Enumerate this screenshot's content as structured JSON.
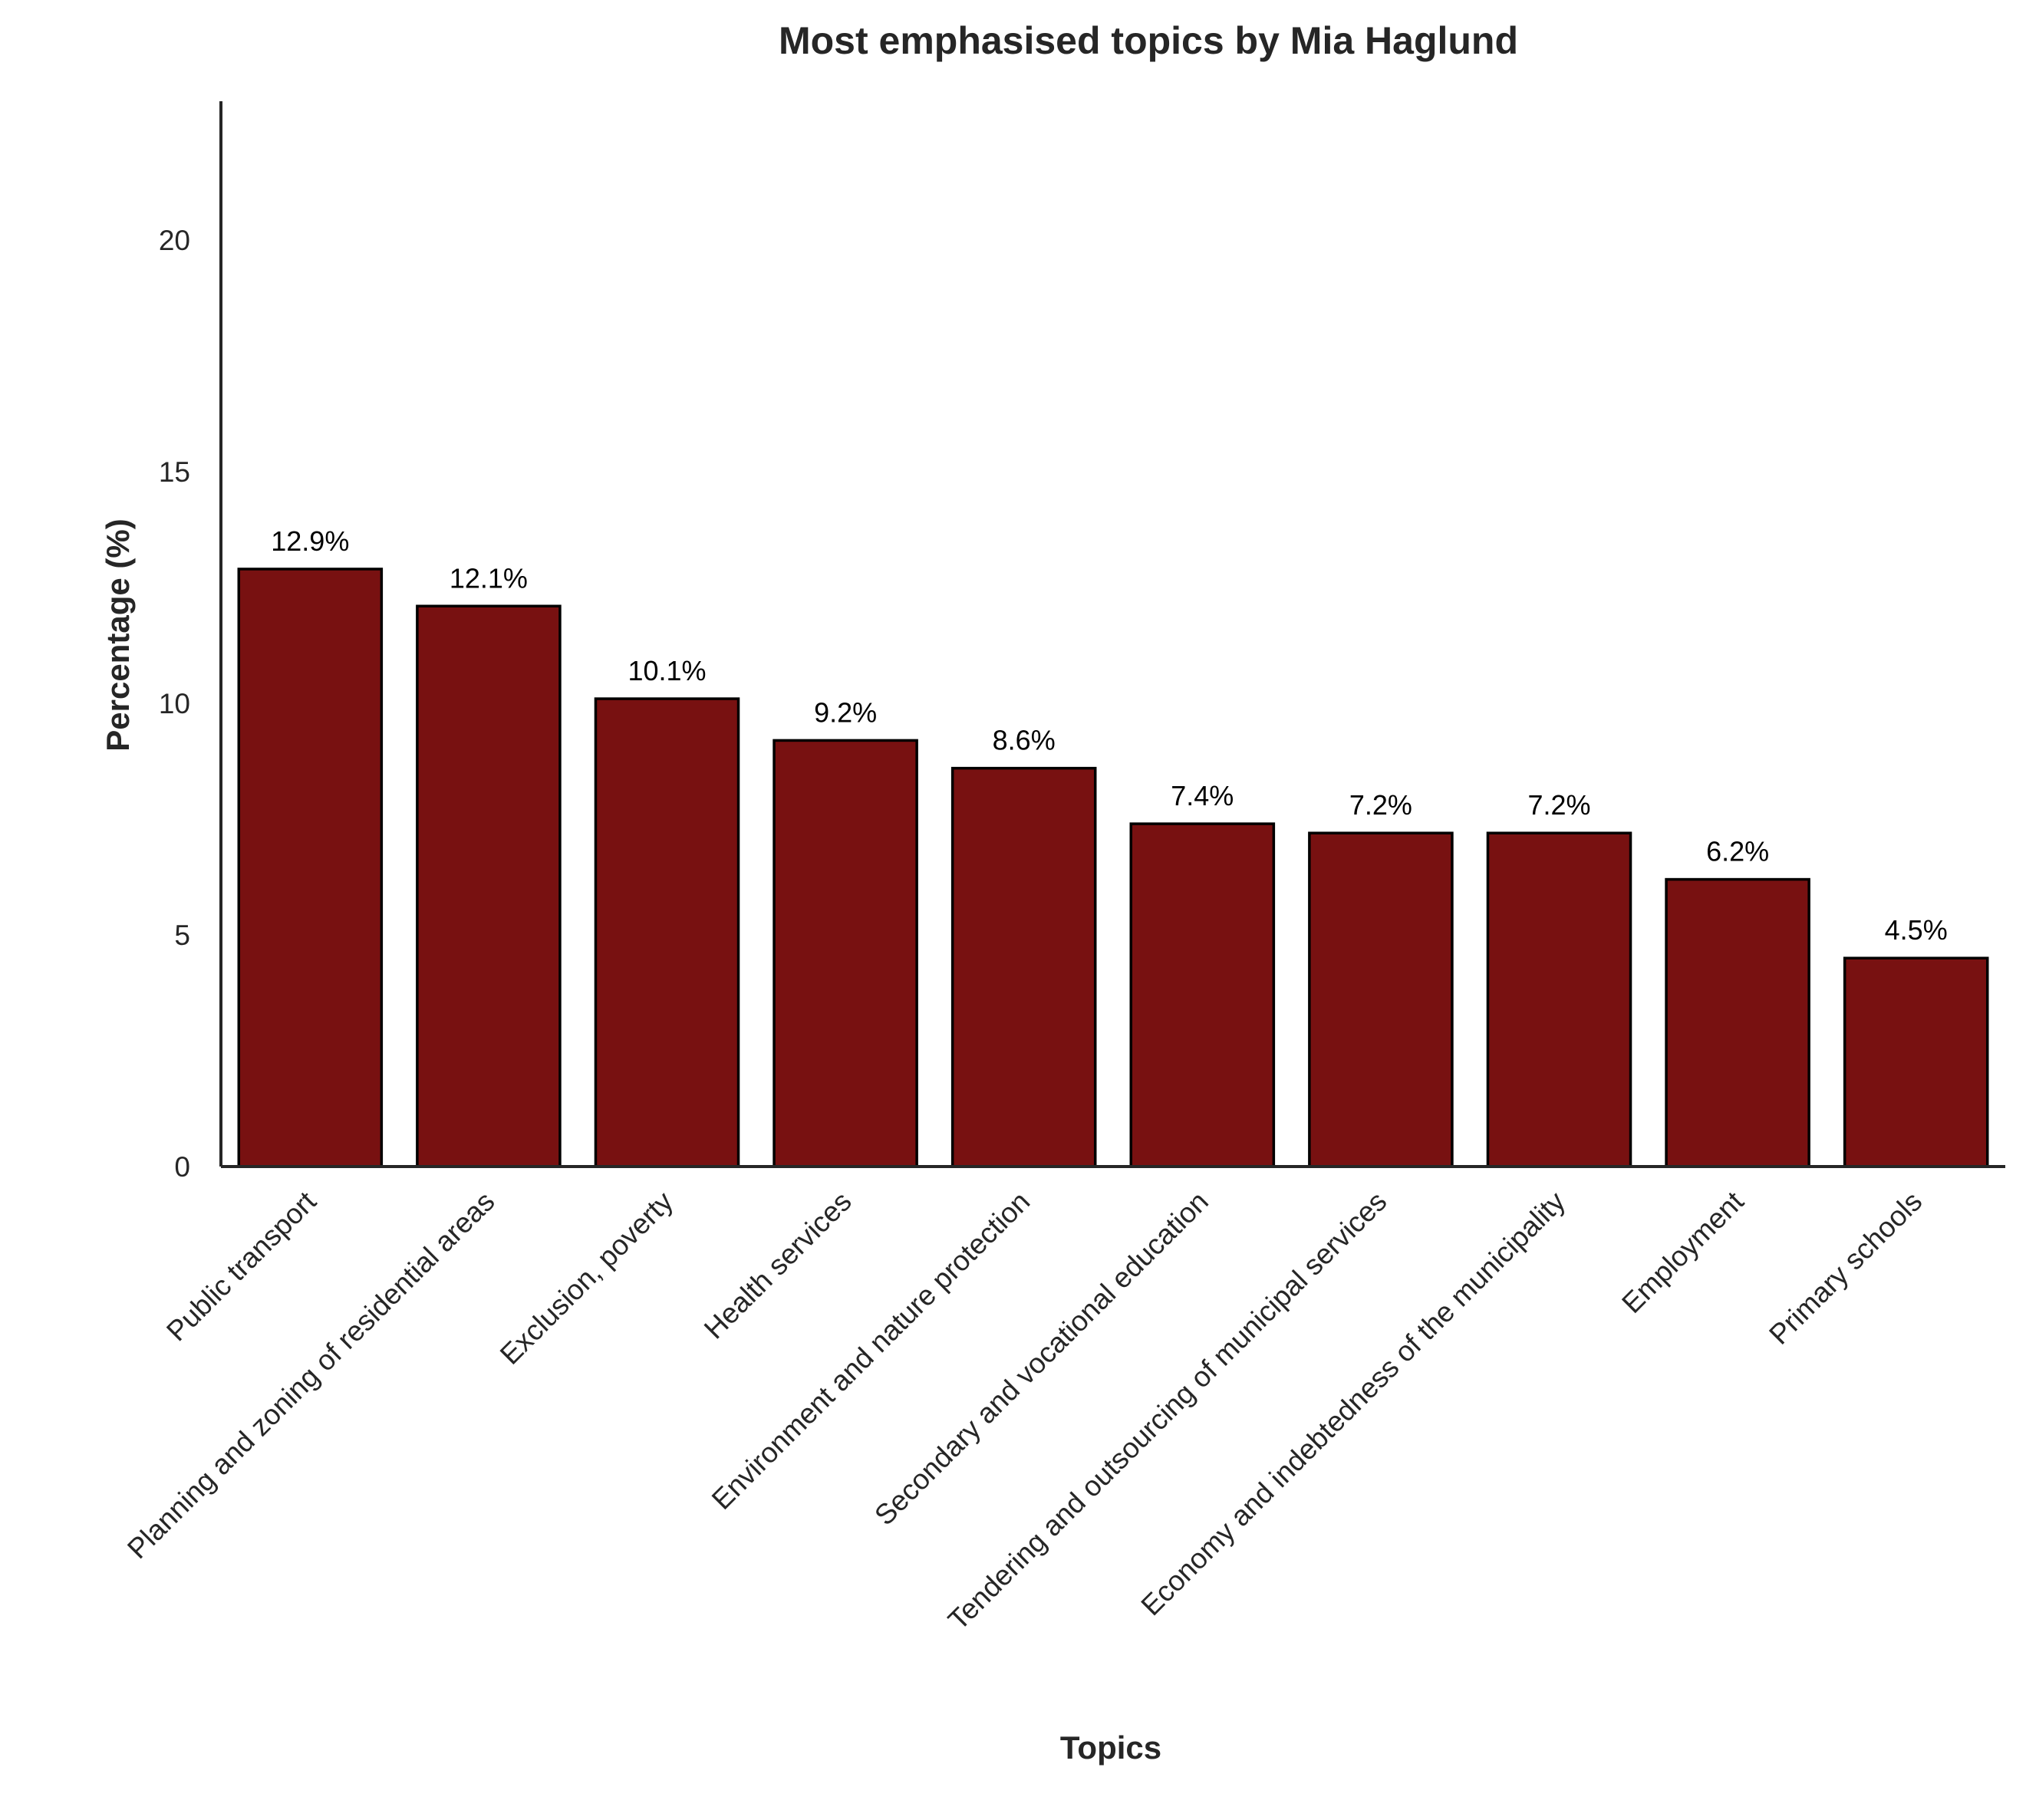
{
  "chart_data": {
    "type": "bar",
    "title": "Most emphasised topics by Mia Haglund",
    "xlabel": "Topics",
    "ylabel": "Percentage (%)",
    "ylim": [
      0,
      23
    ],
    "yticks": [
      0,
      5,
      10,
      15,
      20
    ],
    "categories": [
      "Public transport",
      "Planning and zoning of residential areas",
      "Exclusion, poverty",
      "Health services",
      "Environment and nature protection",
      "Secondary and vocational education",
      "Tendering and outsourcing of municipal services",
      "Economy and indebtedness of the municipality",
      "Employment",
      "Primary schools"
    ],
    "values": [
      12.9,
      12.1,
      10.1,
      9.2,
      8.6,
      7.4,
      7.2,
      7.2,
      6.2,
      4.5
    ],
    "data_labels": [
      "12.9%",
      "12.1%",
      "10.1%",
      "9.2%",
      "8.6%",
      "7.4%",
      "7.2%",
      "7.2%",
      "6.2%",
      "4.5%"
    ],
    "bar_color": "#781111",
    "bar_edge_color": "#000000",
    "grid": false,
    "legend": "none"
  }
}
